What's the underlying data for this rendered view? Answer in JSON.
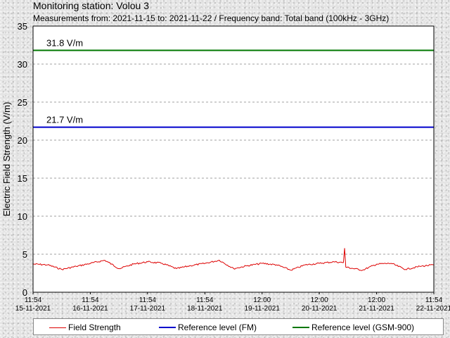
{
  "title": "Monitoring station: Volou 3",
  "subtitle": "Measurements from: 2021-11-15 to: 2021-11-22 / Frequency band: Total band (100kHz - 3GHz)",
  "colors": {
    "field_strength": "#dd0000",
    "reference_fm": "#0000cc",
    "reference_gsm": "#007700",
    "grid": "#a0a0a0",
    "plot_background": "#ffffff"
  },
  "chart_data": {
    "type": "line",
    "title": "",
    "xlabel": "",
    "ylabel": "Electric Field Strength (V/m)",
    "ylim": [
      0,
      35
    ],
    "yticks": [
      0,
      5,
      10,
      15,
      20,
      25,
      30,
      35
    ],
    "xlim": [
      "2021-11-15T11:54",
      "2021-11-22T11:54"
    ],
    "grid": true,
    "legend_position": "bottom",
    "x_ticks": [
      {
        "time": "11:54",
        "date": "15-11-2021"
      },
      {
        "time": "11:54",
        "date": "16-11-2021"
      },
      {
        "time": "11:54",
        "date": "17-11-2021"
      },
      {
        "time": "11:54",
        "date": "18-11-2021"
      },
      {
        "time": "12:00",
        "date": "19-11-2021"
      },
      {
        "time": "12:00",
        "date": "20-11-2021"
      },
      {
        "time": "12:00",
        "date": "21-11-2021"
      },
      {
        "time": "11:54",
        "date": "22-11-2021"
      }
    ],
    "reference_lines": [
      {
        "name": "Reference level (FM)",
        "value": 21.7,
        "label": "21.7 V/m",
        "color": "#0000cc"
      },
      {
        "name": "Reference level (GSM-900)",
        "value": 31.8,
        "label": "31.8 V/m",
        "color": "#007700"
      }
    ],
    "series": [
      {
        "name": "Field Strength",
        "color": "#dd0000",
        "x": [
          "2021-11-15T12:00",
          "2021-11-15T18:00",
          "2021-11-16T00:00",
          "2021-11-16T06:00",
          "2021-11-16T12:00",
          "2021-11-16T18:00",
          "2021-11-17T00:00",
          "2021-11-17T06:00",
          "2021-11-17T12:00",
          "2021-11-17T18:00",
          "2021-11-18T00:00",
          "2021-11-18T06:00",
          "2021-11-18T12:00",
          "2021-11-18T18:00",
          "2021-11-19T00:00",
          "2021-11-19T06:00",
          "2021-11-19T12:00",
          "2021-11-19T18:00",
          "2021-11-20T00:00",
          "2021-11-20T06:00",
          "2021-11-20T12:00",
          "2021-11-20T18:00",
          "2021-11-20T22:00",
          "2021-11-20T22:30",
          "2021-11-20T23:00",
          "2021-11-21T06:00",
          "2021-11-21T12:00",
          "2021-11-21T18:00",
          "2021-11-22T00:00",
          "2021-11-22T06:00",
          "2021-11-22T11:54"
        ],
        "values": [
          3.7,
          3.6,
          3.0,
          3.4,
          3.8,
          4.2,
          3.1,
          3.7,
          4.0,
          3.8,
          3.1,
          3.5,
          3.8,
          4.2,
          3.1,
          3.5,
          3.8,
          3.6,
          2.9,
          3.6,
          3.8,
          4.0,
          3.9,
          5.8,
          3.3,
          2.9,
          3.7,
          3.8,
          3.0,
          3.4,
          3.6
        ]
      }
    ]
  },
  "legend": {
    "field_strength": "Field Strength",
    "reference_fm": "Reference level (FM)",
    "reference_gsm": "Reference level (GSM-900)"
  }
}
